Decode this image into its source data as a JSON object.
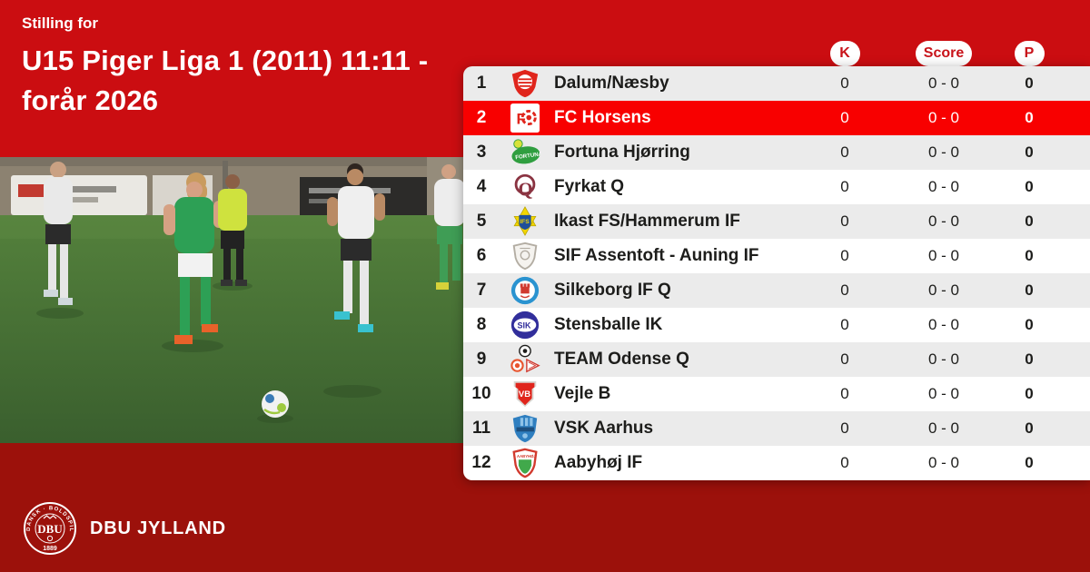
{
  "header": {
    "eyebrow": "Stilling for",
    "title_line1": "U15 Piger Liga 1 (2011) 11:11 -",
    "title_line2": "forår 2026"
  },
  "table": {
    "columns": {
      "k_label": "K",
      "score_label": "Score",
      "p_label": "P"
    },
    "rows": [
      {
        "pos": "1",
        "club": "Dalum/Næsby",
        "k": "0",
        "score": "0 - 0",
        "p": "0",
        "highlighted": false,
        "logo": {
          "name": "dalum-naesby-logo",
          "type": "shield-emblem",
          "c1": "#e0251c",
          "c2": "#ffffff"
        }
      },
      {
        "pos": "2",
        "club": "FC Horsens",
        "k": "0",
        "score": "0 - 0",
        "p": "0",
        "highlighted": true,
        "logo": {
          "name": "fc-horsens-logo",
          "type": "fc-square",
          "c1": "#ffffff",
          "c2": "#e0251c",
          "text": "F"
        }
      },
      {
        "pos": "3",
        "club": "Fortuna Hjørring",
        "k": "0",
        "score": "0 - 0",
        "p": "0",
        "highlighted": false,
        "logo": {
          "name": "fortuna-hjoerring-logo",
          "type": "oval-text",
          "c1": "#2f9e3f",
          "c2": "#ffffff",
          "c3": "#d8e23a",
          "text": "FORTUNA"
        }
      },
      {
        "pos": "4",
        "club": "Fyrkat Q",
        "k": "0",
        "score": "0 - 0",
        "p": "0",
        "highlighted": false,
        "logo": {
          "name": "fyrkat-q-logo",
          "type": "ring-letter",
          "c1": "#8a3341",
          "text": "Q"
        }
      },
      {
        "pos": "5",
        "club": "Ikast FS/Hammerum IF",
        "k": "0",
        "score": "0 - 0",
        "p": "0",
        "highlighted": false,
        "logo": {
          "name": "ikast-fs-logo",
          "type": "star-shield",
          "c1": "#f2d500",
          "c2": "#1e4f9a",
          "text": "IFS"
        }
      },
      {
        "pos": "6",
        "club": "SIF Assentoft - Auning IF",
        "k": "0",
        "score": "0 - 0",
        "p": "0",
        "highlighted": false,
        "logo": {
          "name": "sif-assentoft-logo",
          "type": "shield-outline",
          "c1": "#b3ada3",
          "c2": "#f5f3ef"
        }
      },
      {
        "pos": "7",
        "club": "Silkeborg IF Q",
        "k": "0",
        "score": "0 - 0",
        "p": "0",
        "highlighted": false,
        "logo": {
          "name": "silkeborg-if-logo",
          "type": "ring-emblem",
          "c1": "#2a93d0",
          "c2": "#ffffff",
          "c3": "#d03a30"
        }
      },
      {
        "pos": "8",
        "club": "Stensballe IK",
        "k": "0",
        "score": "0 - 0",
        "p": "0",
        "highlighted": false,
        "logo": {
          "name": "stensballe-ik-logo",
          "type": "circle-text",
          "c1": "#312e9b",
          "c2": "#ffffff",
          "text": "SIK"
        }
      },
      {
        "pos": "9",
        "club": "TEAM Odense Q",
        "k": "0",
        "score": "0 - 0",
        "p": "0",
        "highlighted": false,
        "logo": {
          "name": "team-odense-logo",
          "type": "cluster",
          "c1": "#1d1d1b",
          "c2": "#e8542e",
          "c3": "#d03a30"
        }
      },
      {
        "pos": "10",
        "club": "Vejle B",
        "k": "0",
        "score": "0 - 0",
        "p": "0",
        "highlighted": false,
        "logo": {
          "name": "vejle-b-logo",
          "type": "banner-shield",
          "c1": "#e0251c",
          "c2": "#ffffff",
          "text": "VB"
        }
      },
      {
        "pos": "11",
        "club": "VSK Aarhus",
        "k": "0",
        "score": "0 - 0",
        "p": "0",
        "highlighted": false,
        "logo": {
          "name": "vsk-aarhus-logo",
          "type": "shield-stripes",
          "c1": "#2f7fc0",
          "c2": "#8fc3e8",
          "c3": "#1d4f7e"
        }
      },
      {
        "pos": "12",
        "club": "Aabyhøj IF",
        "k": "0",
        "score": "0 - 0",
        "p": "0",
        "highlighted": false,
        "logo": {
          "name": "aabyhoej-if-logo",
          "type": "shield-border",
          "c1": "#d23a2e",
          "c2": "#ffffff",
          "c3": "#41a94b",
          "text": "AABYHØJ"
        }
      }
    ]
  },
  "footer": {
    "org_name": "DBU JYLLAND",
    "emblem": {
      "ring_text": "DANSK · BOLDSPIL · UNION",
      "year": "1889",
      "center_text": "DBU"
    }
  },
  "colors": {
    "bg_top": "#cb0d11",
    "bg_bottom": "#9c110b",
    "row_gray": "#ebebeb",
    "row_white": "#ffffff",
    "row_highlight": "#f80000",
    "badge_text": "#c8131a",
    "text_dark": "#1d1d1b",
    "text_light": "#ffffff"
  }
}
